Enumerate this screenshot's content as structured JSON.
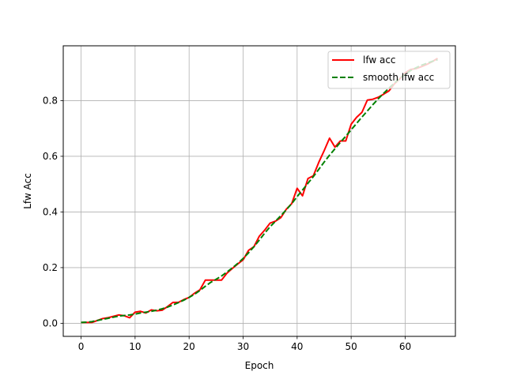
{
  "chart_data": {
    "type": "line",
    "title": "",
    "xlabel": "Epoch",
    "ylabel": "Lfw Acc",
    "xlim": [
      -3.3,
      69.3
    ],
    "ylim": [
      -0.047,
      0.997
    ],
    "xticks": [
      0,
      10,
      20,
      30,
      40,
      50,
      60
    ],
    "yticks": [
      0.0,
      0.2,
      0.4,
      0.6,
      0.8
    ],
    "grid": true,
    "legend_position": "top-right",
    "colors": {
      "lfw_acc": "#ff0000",
      "smooth": "#008000",
      "grid": "#b0b0b0"
    },
    "x": [
      0,
      1,
      2,
      3,
      4,
      5,
      6,
      7,
      8,
      9,
      10,
      11,
      12,
      13,
      14,
      15,
      16,
      17,
      18,
      19,
      20,
      21,
      22,
      23,
      24,
      25,
      26,
      27,
      28,
      29,
      30,
      31,
      32,
      33,
      34,
      35,
      36,
      37,
      38,
      39,
      40,
      41,
      42,
      43,
      44,
      45,
      46,
      47,
      48,
      49,
      50,
      51,
      52,
      53,
      54,
      55,
      56,
      57,
      58,
      59,
      60,
      61,
      62,
      63,
      64,
      65,
      66
    ],
    "series": [
      {
        "name": "lfw acc",
        "style": "solid",
        "values": [
          0.003,
          0.003,
          0.003,
          0.01,
          0.017,
          0.02,
          0.025,
          0.03,
          0.027,
          0.02,
          0.04,
          0.043,
          0.037,
          0.048,
          0.045,
          0.047,
          0.06,
          0.075,
          0.075,
          0.085,
          0.093,
          0.108,
          0.12,
          0.155,
          0.155,
          0.155,
          0.155,
          0.18,
          0.197,
          0.213,
          0.228,
          0.262,
          0.275,
          0.313,
          0.335,
          0.36,
          0.367,
          0.38,
          0.41,
          0.43,
          0.485,
          0.458,
          0.52,
          0.53,
          0.578,
          0.62,
          0.665,
          0.633,
          0.655,
          0.655,
          0.715,
          0.74,
          0.758,
          0.802,
          0.805,
          0.812,
          0.823,
          0.835,
          0.86,
          0.878,
          0.9,
          0.912,
          0.915,
          0.922,
          0.93,
          0.94,
          0.952
        ]
      },
      {
        "name": "smooth lfw acc",
        "style": "dashed",
        "values": [
          0.003,
          0.004,
          0.006,
          0.01,
          0.014,
          0.018,
          0.022,
          0.026,
          0.028,
          0.03,
          0.033,
          0.037,
          0.04,
          0.043,
          0.047,
          0.052,
          0.058,
          0.066,
          0.074,
          0.083,
          0.093,
          0.104,
          0.118,
          0.133,
          0.147,
          0.158,
          0.17,
          0.184,
          0.199,
          0.215,
          0.233,
          0.253,
          0.275,
          0.299,
          0.324,
          0.347,
          0.367,
          0.387,
          0.408,
          0.43,
          0.455,
          0.479,
          0.503,
          0.527,
          0.553,
          0.579,
          0.604,
          0.627,
          0.65,
          0.672,
          0.695,
          0.718,
          0.741,
          0.763,
          0.785,
          0.806,
          0.826,
          0.845,
          0.863,
          0.88,
          0.895,
          0.908,
          0.918,
          0.927,
          0.934,
          0.941,
          0.947
        ]
      }
    ]
  }
}
